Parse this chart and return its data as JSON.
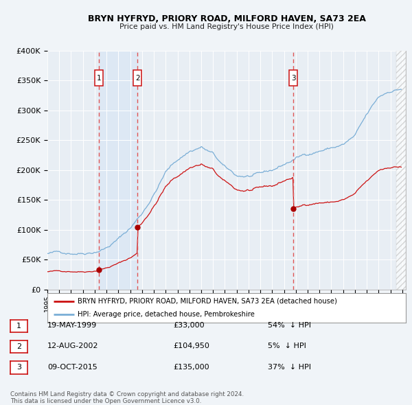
{
  "title": "BRYN HYFRYD, PRIORY ROAD, MILFORD HAVEN, SA73 2EA",
  "subtitle": "Price paid vs. HM Land Registry's House Price Index (HPI)",
  "ylim": [
    0,
    400000
  ],
  "yticks": [
    0,
    50000,
    100000,
    150000,
    200000,
    250000,
    300000,
    350000,
    400000
  ],
  "ytick_labels": [
    "£0",
    "£50K",
    "£100K",
    "£150K",
    "£200K",
    "£250K",
    "£300K",
    "£350K",
    "£400K"
  ],
  "hpi_color": "#7aaed6",
  "price_color": "#cc1111",
  "sale_marker_color": "#aa0000",
  "vline_color": "#e05555",
  "bg_color": "#f0f4f8",
  "plot_bg": "#e8eef4",
  "grid_color": "#ffffff",
  "shade_color": "#dde8f4",
  "sales": [
    {
      "num": 1,
      "date": "19-MAY-1999",
      "price": 33000,
      "pct": "54%",
      "x": 1999.37
    },
    {
      "num": 2,
      "date": "12-AUG-2002",
      "price": 104950,
      "pct": "5%",
      "x": 2002.62
    },
    {
      "num": 3,
      "date": "09-OCT-2015",
      "price": 135000,
      "pct": "37%",
      "x": 2015.79
    }
  ],
  "legend_line1": "BRYN HYFRYD, PRIORY ROAD, MILFORD HAVEN, SA73 2EA (detached house)",
  "legend_line2": "HPI: Average price, detached house, Pembrokeshire",
  "footnote1": "Contains HM Land Registry data © Crown copyright and database right 2024.",
  "footnote2": "This data is licensed under the Open Government Licence v3.0."
}
